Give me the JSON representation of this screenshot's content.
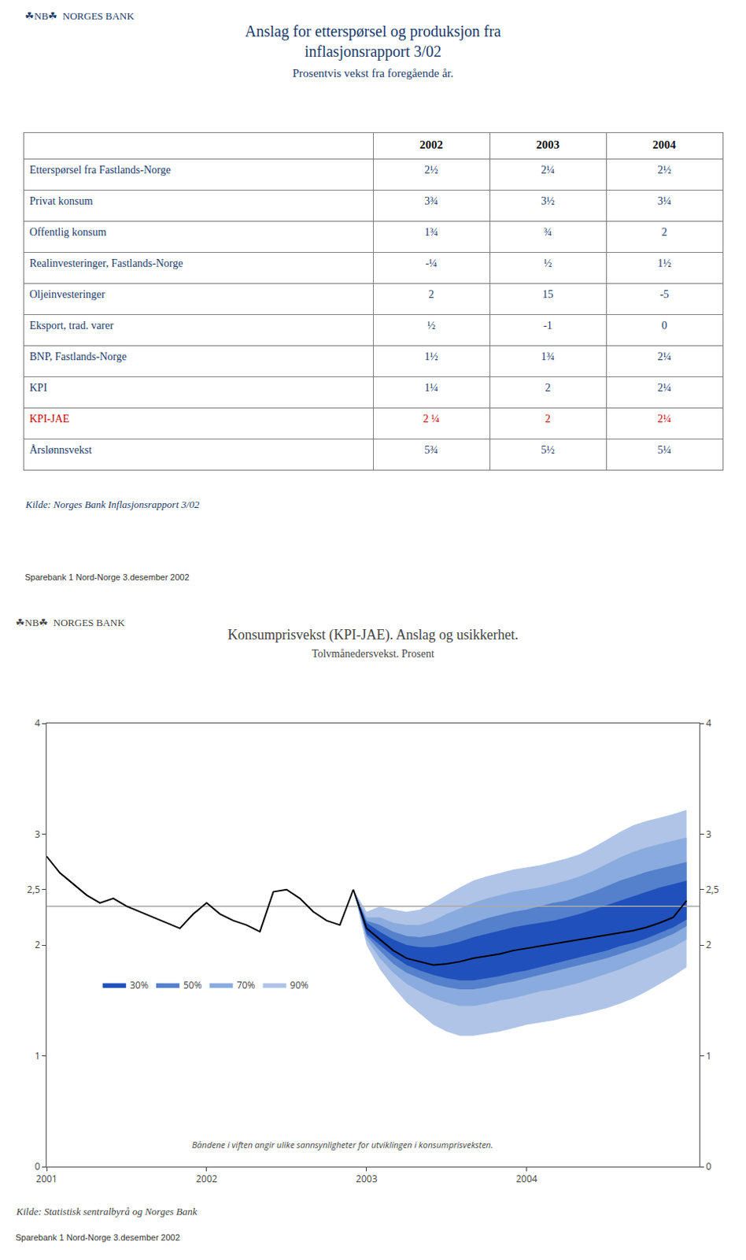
{
  "chart_data": [
    {
      "type": "table",
      "header": "☘NB☘  NORGES BANK",
      "title": "Anslag for etterspørsel og produksjon fra\ninflasjonsrapport 3/02",
      "subtitle": "Prosentvis vekst fra foregående år.",
      "color": "#1a3a6b",
      "columns": [
        "2002",
        "2003",
        "2004"
      ],
      "rows": [
        {
          "label": "Etterspørsel fra Fastlands-Norge",
          "values": [
            "2½",
            "2¼",
            "2½"
          ]
        },
        {
          "label": "Privat konsum",
          "values": [
            "3¾",
            "3½",
            "3¼"
          ]
        },
        {
          "label": "Offentlig konsum",
          "values": [
            "1¾",
            "¾",
            "2"
          ]
        },
        {
          "label": "Realinvesteringer, Fastlands-Norge",
          "values": [
            "-¼",
            "½",
            "1½"
          ]
        },
        {
          "label": "Oljeinvesteringer",
          "values": [
            "2",
            "15",
            "-5"
          ]
        },
        {
          "label": "Eksport, trad. varer",
          "values": [
            "½",
            "-1",
            "0"
          ]
        },
        {
          "label": "BNP, Fastlands-Norge",
          "values": [
            "1½",
            "1¾",
            "2¼"
          ]
        },
        {
          "label": "KPI",
          "values": [
            "1¼",
            "2",
            "2¼"
          ]
        },
        {
          "label": "KPI-JAE",
          "values": [
            "2 ¼",
            "2",
            "2¼"
          ],
          "color": "#cc0000"
        },
        {
          "label": "Årslønnsvekst",
          "values": [
            "5¾",
            "5½",
            "5¼"
          ]
        }
      ],
      "source": "Kilde: Norges Bank Inflasjonsrapport 3/02",
      "footer": "Sparebank 1 Nord-Norge 3.desember 2002"
    },
    {
      "type": "fan",
      "header": "☘NB☘  NORGES BANK",
      "title": "Konsumprisvekst (KPI-JAE). Anslag og usikkerhet.",
      "subtitle": "Tolvmånedersvekst. Prosent",
      "xlim": [
        2001,
        2005.08
      ],
      "xticks": [
        2001,
        2002,
        2003,
        2004
      ],
      "ylim": [
        0,
        4
      ],
      "yticks": [
        0,
        1,
        2,
        {
          "value": 2.5,
          "label": "2,5"
        },
        3,
        4
      ],
      "y2lim": [
        0,
        4
      ],
      "y2ticks": [
        0,
        1,
        2,
        {
          "value": 2.5,
          "label": "2,5"
        },
        3,
        4
      ],
      "grid": false,
      "legend": "left",
      "reference_line": {
        "y": 2.35,
        "color": "#aaaaaa"
      },
      "series": [
        {
          "color": "#000000",
          "x": [
            2001.0,
            2001.083,
            2001.167,
            2001.25,
            2001.333,
            2001.417,
            2001.5,
            2001.583,
            2001.667,
            2001.75,
            2001.833,
            2001.917,
            2002.0,
            2002.083,
            2002.167,
            2002.25,
            2002.333,
            2002.417,
            2002.5,
            2002.583,
            2002.667,
            2002.75,
            2002.833,
            2002.917
          ],
          "values": [
            2.8,
            2.65,
            2.55,
            2.45,
            2.38,
            2.42,
            2.35,
            2.3,
            2.25,
            2.2,
            2.15,
            2.28,
            2.38,
            2.28,
            2.22,
            2.18,
            2.12,
            2.48,
            2.5,
            2.42,
            2.3,
            2.22,
            2.18,
            2.5
          ]
        },
        {
          "color": "#000000",
          "x": [
            2002.917,
            2003.0,
            2003.083,
            2003.167,
            2003.25,
            2003.333,
            2003.417,
            2003.5,
            2003.583,
            2003.667,
            2003.75,
            2003.833,
            2003.917,
            2004.0,
            2004.083,
            2004.167,
            2004.25,
            2004.333,
            2004.417,
            2004.5,
            2004.583,
            2004.667,
            2004.75,
            2004.833,
            2004.917,
            2005.0
          ],
          "values": [
            2.5,
            2.15,
            2.05,
            1.95,
            1.88,
            1.85,
            1.82,
            1.83,
            1.85,
            1.88,
            1.9,
            1.92,
            1.95,
            1.97,
            1.99,
            2.01,
            2.03,
            2.05,
            2.07,
            2.09,
            2.11,
            2.13,
            2.16,
            2.2,
            2.25,
            2.4
          ]
        }
      ],
      "bands": [
        {
          "name": "90%",
          "color": "#b0c4e8",
          "x": [
            2002.917,
            2003.0,
            2003.083,
            2003.167,
            2003.25,
            2003.333,
            2003.417,
            2003.5,
            2003.583,
            2003.667,
            2003.75,
            2003.833,
            2003.917,
            2004.0,
            2004.083,
            2004.167,
            2004.25,
            2004.333,
            2004.417,
            2004.5,
            2004.583,
            2004.667,
            2004.75,
            2004.833,
            2004.917,
            2005.0
          ],
          "low": [
            2.5,
            2.0,
            1.78,
            1.62,
            1.48,
            1.38,
            1.28,
            1.22,
            1.18,
            1.18,
            1.2,
            1.22,
            1.25,
            1.28,
            1.3,
            1.32,
            1.35,
            1.37,
            1.4,
            1.43,
            1.47,
            1.52,
            1.58,
            1.65,
            1.72,
            1.8
          ],
          "high": [
            2.5,
            2.3,
            2.35,
            2.32,
            2.3,
            2.32,
            2.38,
            2.45,
            2.52,
            2.58,
            2.62,
            2.65,
            2.68,
            2.7,
            2.72,
            2.75,
            2.78,
            2.82,
            2.88,
            2.95,
            3.02,
            3.08,
            3.12,
            3.15,
            3.18,
            3.22
          ]
        },
        {
          "name": "70%",
          "color": "#8aabdd",
          "x": [
            2002.917,
            2003.0,
            2003.083,
            2003.167,
            2003.25,
            2003.333,
            2003.417,
            2003.5,
            2003.583,
            2003.667,
            2003.75,
            2003.833,
            2003.917,
            2004.0,
            2004.083,
            2004.167,
            2004.25,
            2004.333,
            2004.417,
            2004.5,
            2004.583,
            2004.667,
            2004.75,
            2004.833,
            2004.917,
            2005.0
          ],
          "low": [
            2.5,
            2.05,
            1.88,
            1.75,
            1.65,
            1.58,
            1.52,
            1.48,
            1.45,
            1.45,
            1.47,
            1.5,
            1.52,
            1.55,
            1.58,
            1.6,
            1.63,
            1.66,
            1.7,
            1.74,
            1.78,
            1.83,
            1.88,
            1.93,
            1.98,
            2.05
          ],
          "high": [
            2.5,
            2.25,
            2.25,
            2.2,
            2.18,
            2.18,
            2.22,
            2.28,
            2.33,
            2.38,
            2.42,
            2.45,
            2.48,
            2.5,
            2.52,
            2.55,
            2.58,
            2.62,
            2.67,
            2.73,
            2.79,
            2.84,
            2.88,
            2.91,
            2.94,
            2.97
          ]
        },
        {
          "name": "50%",
          "color": "#5580cc",
          "x": [
            2002.917,
            2003.0,
            2003.083,
            2003.167,
            2003.25,
            2003.333,
            2003.417,
            2003.5,
            2003.583,
            2003.667,
            2003.75,
            2003.833,
            2003.917,
            2004.0,
            2004.083,
            2004.167,
            2004.25,
            2004.333,
            2004.417,
            2004.5,
            2004.583,
            2004.667,
            2004.75,
            2004.833,
            2004.917,
            2005.0
          ],
          "low": [
            2.5,
            2.08,
            1.95,
            1.83,
            1.75,
            1.7,
            1.65,
            1.62,
            1.6,
            1.6,
            1.62,
            1.65,
            1.67,
            1.7,
            1.73,
            1.76,
            1.79,
            1.82,
            1.85,
            1.88,
            1.92,
            1.96,
            2.0,
            2.05,
            2.1,
            2.17
          ],
          "high": [
            2.5,
            2.22,
            2.18,
            2.12,
            2.08,
            2.07,
            2.09,
            2.12,
            2.16,
            2.2,
            2.24,
            2.27,
            2.3,
            2.32,
            2.35,
            2.38,
            2.4,
            2.44,
            2.48,
            2.53,
            2.58,
            2.62,
            2.66,
            2.69,
            2.72,
            2.75
          ]
        },
        {
          "name": "30%",
          "color": "#2050bb",
          "x": [
            2002.917,
            2003.0,
            2003.083,
            2003.167,
            2003.25,
            2003.333,
            2003.417,
            2003.5,
            2003.583,
            2003.667,
            2003.75,
            2003.833,
            2003.917,
            2004.0,
            2004.083,
            2004.167,
            2004.25,
            2004.333,
            2004.417,
            2004.5,
            2004.583,
            2004.667,
            2004.75,
            2004.833,
            2004.917,
            2005.0
          ],
          "low": [
            2.5,
            2.1,
            2.0,
            1.9,
            1.82,
            1.77,
            1.73,
            1.7,
            1.68,
            1.68,
            1.7,
            1.72,
            1.75,
            1.77,
            1.8,
            1.83,
            1.86,
            1.89,
            1.92,
            1.95,
            1.99,
            2.02,
            2.06,
            2.11,
            2.16,
            2.23
          ],
          "high": [
            2.5,
            2.2,
            2.12,
            2.05,
            2.0,
            1.98,
            1.98,
            2.0,
            2.03,
            2.07,
            2.1,
            2.13,
            2.16,
            2.18,
            2.2,
            2.22,
            2.25,
            2.28,
            2.32,
            2.36,
            2.4,
            2.44,
            2.48,
            2.52,
            2.55,
            2.58
          ]
        }
      ],
      "annotation": "Båndene i viften angir ulike sannsynligheter for utviklingen i konsumprisveksten.",
      "source": "Kilde: Statistisk sentralbyrå og Norges Bank",
      "footer": "Sparebank 1 Nord-Norge 3.desember 2002"
    }
  ]
}
